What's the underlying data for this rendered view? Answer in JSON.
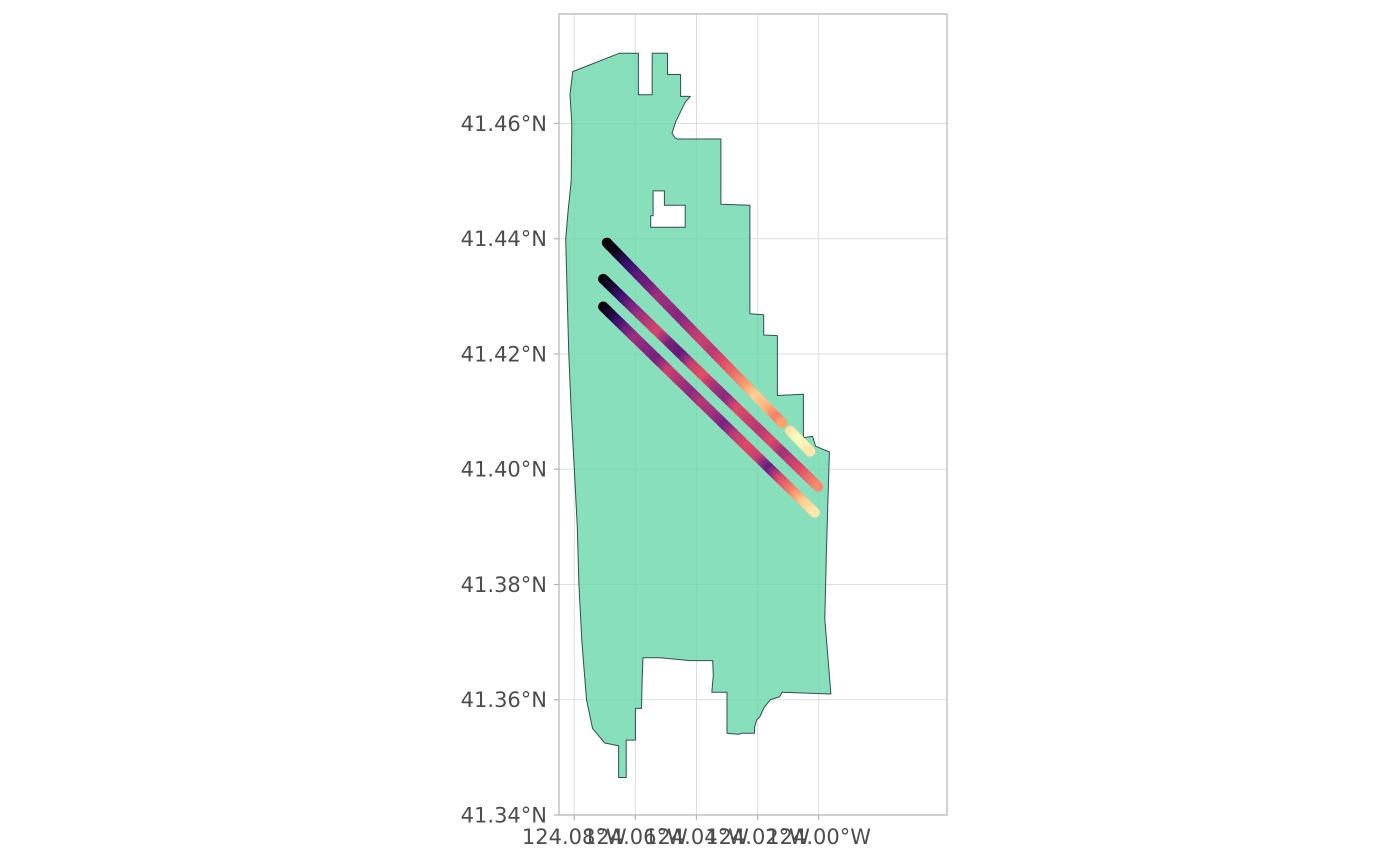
{
  "map": {
    "projection": "geographic lon/lat",
    "xlim": [
      -124.085,
      -123.958
    ],
    "ylim": [
      41.34,
      41.479
    ],
    "grid": true,
    "x_ticks": [
      {
        "value": -124.08,
        "label": "124.08°W"
      },
      {
        "value": -124.06,
        "label": "124.06°W"
      },
      {
        "value": -124.04,
        "label": "124.04°W"
      },
      {
        "value": -124.02,
        "label": "124.02°W"
      },
      {
        "value": -124.0,
        "label": "124.00°W"
      }
    ],
    "y_ticks": [
      {
        "value": 41.34,
        "label": "41.34°N"
      },
      {
        "value": 41.36,
        "label": "41.36°N"
      },
      {
        "value": 41.38,
        "label": "41.38°N"
      },
      {
        "value": 41.4,
        "label": "41.40°N"
      },
      {
        "value": 41.42,
        "label": "41.42°N"
      },
      {
        "value": 41.44,
        "label": "41.44°N"
      },
      {
        "value": 41.46,
        "label": "41.46°N"
      }
    ],
    "colors": {
      "boundary_fill": "#66d6a8",
      "boundary_stroke": "#2f4f4f",
      "palette": "magma",
      "palette_stops": [
        "#000004",
        "#3b0f70",
        "#8c2981",
        "#de4968",
        "#fe9f6d",
        "#fcfdbf"
      ]
    }
  },
  "chart_data": {
    "type": "scatter",
    "title": "",
    "xlabel": "",
    "ylabel": "",
    "color_scale": "magma (continuous, no legend shown)",
    "boundary_polygon": [
      [
        -124.0652,
        41.4722
      ],
      [
        -124.059,
        41.4722
      ],
      [
        -124.059,
        41.465
      ],
      [
        -124.0545,
        41.465
      ],
      [
        -124.0545,
        41.4722
      ],
      [
        -124.0495,
        41.4722
      ],
      [
        -124.0495,
        41.4685
      ],
      [
        -124.0452,
        41.4685
      ],
      [
        -124.0452,
        41.4647
      ],
      [
        -124.042,
        41.4647
      ],
      [
        -124.0437,
        41.4637
      ],
      [
        -124.0468,
        41.4603
      ],
      [
        -124.048,
        41.4583
      ],
      [
        -124.047,
        41.4575
      ],
      [
        -124.0462,
        41.4573
      ],
      [
        -124.032,
        41.4573
      ],
      [
        -124.032,
        41.446
      ],
      [
        -124.0225,
        41.4458
      ],
      [
        -124.0225,
        41.427
      ],
      [
        -124.018,
        41.4268
      ],
      [
        -124.018,
        41.4233
      ],
      [
        -124.0135,
        41.4232
      ],
      [
        -124.0135,
        41.4128
      ],
      [
        -124.005,
        41.413
      ],
      [
        -124.005,
        41.4055
      ],
      [
        -124.002,
        41.4057
      ],
      [
        -124.001,
        41.404
      ],
      [
        -123.9965,
        41.403
      ],
      [
        -123.9975,
        41.385
      ],
      [
        -123.998,
        41.374
      ],
      [
        -123.996,
        41.361
      ],
      [
        -124.012,
        41.3613
      ],
      [
        -124.0128,
        41.3605
      ],
      [
        -124.0158,
        41.36
      ],
      [
        -124.0178,
        41.3587
      ],
      [
        -124.0193,
        41.357
      ],
      [
        -124.0203,
        41.3565
      ],
      [
        -124.021,
        41.3552
      ],
      [
        -124.021,
        41.3542
      ],
      [
        -124.0253,
        41.3542
      ],
      [
        -124.026,
        41.354
      ],
      [
        -124.0265,
        41.354
      ],
      [
        -124.03,
        41.3542
      ],
      [
        -124.03,
        41.3613
      ],
      [
        -124.035,
        41.3613
      ],
      [
        -124.0345,
        41.3642
      ],
      [
        -124.0347,
        41.3668
      ],
      [
        -124.042,
        41.3668
      ],
      [
        -124.052,
        41.3673
      ],
      [
        -124.0575,
        41.3673
      ],
      [
        -124.0578,
        41.3632
      ],
      [
        -124.058,
        41.3585
      ],
      [
        -124.06,
        41.3585
      ],
      [
        -124.06,
        41.353
      ],
      [
        -124.063,
        41.353
      ],
      [
        -124.063,
        41.3465
      ],
      [
        -124.0655,
        41.3465
      ],
      [
        -124.0655,
        41.352
      ],
      [
        -124.07,
        41.3525
      ],
      [
        -124.074,
        41.355
      ],
      [
        -124.076,
        41.36
      ],
      [
        -124.0775,
        41.37
      ],
      [
        -124.0785,
        41.38
      ],
      [
        -124.079,
        41.39
      ],
      [
        -124.08,
        41.4
      ],
      [
        -124.081,
        41.41
      ],
      [
        -124.0818,
        41.42
      ],
      [
        -124.0823,
        41.43
      ],
      [
        -124.0828,
        41.44
      ],
      [
        -124.082,
        41.445
      ],
      [
        -124.081,
        41.45
      ],
      [
        -124.0808,
        41.46
      ],
      [
        -124.0814,
        41.465
      ],
      [
        -124.0805,
        41.469
      ],
      [
        -124.0652,
        41.4722
      ]
    ],
    "boundary_holes": [
      [
        [
          -124.0542,
          41.4483
        ],
        [
          -124.0505,
          41.4483
        ],
        [
          -124.0505,
          41.4458
        ],
        [
          -124.0437,
          41.4458
        ],
        [
          -124.0437,
          41.442
        ],
        [
          -124.055,
          41.442
        ],
        [
          -124.055,
          41.444
        ],
        [
          -124.0542,
          41.444
        ],
        [
          -124.0542,
          41.4483
        ]
      ]
    ],
    "series": [
      {
        "start": [
          -124.0693,
          41.4393
        ],
        "end": [
          -124.0028,
          41.4031
        ],
        "gap": [
          -124.0105,
          41.4085
        ],
        "color_values": [
          0,
          0.05,
          0.18,
          0.28,
          0.33,
          0.45,
          0.42,
          0.38,
          0.48,
          0.55,
          0.5,
          0.6,
          0.68,
          0.78,
          0.9,
          0.85,
          0.72,
          0.92,
          1.0,
          0.95
        ]
      },
      {
        "start": [
          -124.0705,
          41.433
        ],
        "end": [
          -124.0002,
          41.397
        ],
        "gap": null,
        "color_values": [
          0,
          0.1,
          0.25,
          0.4,
          0.5,
          0.58,
          0.35,
          0.3,
          0.55,
          0.62,
          0.45,
          0.4,
          0.6,
          0.55,
          0.5,
          0.6,
          0.45,
          0.55,
          0.65,
          0.75
        ]
      },
      {
        "start": [
          -124.0705,
          41.4282
        ],
        "end": [
          -124.0013,
          41.3925
        ],
        "gap": null,
        "color_values": [
          0,
          0.12,
          0.3,
          0.45,
          0.38,
          0.35,
          0.55,
          0.48,
          0.4,
          0.5,
          0.45,
          0.35,
          0.52,
          0.6,
          0.55,
          0.3,
          0.6,
          0.72,
          0.88,
          0.95
        ]
      }
    ]
  }
}
